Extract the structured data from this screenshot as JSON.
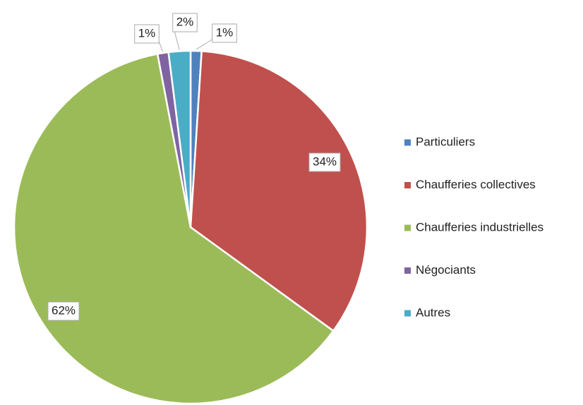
{
  "chart_data": {
    "type": "pie",
    "categories": [
      "Particuliers",
      "Chaufferies collectives",
      "Chaufferies industrielles",
      "Négociants",
      "Autres"
    ],
    "values": [
      1,
      34,
      62,
      1,
      2
    ],
    "value_labels": [
      "1%",
      "34%",
      "62%",
      "1%",
      "2%"
    ],
    "colors": [
      "#4f81bd",
      "#c0504d",
      "#9bbb59",
      "#8064a2",
      "#4bacc6"
    ],
    "legend": "right"
  }
}
